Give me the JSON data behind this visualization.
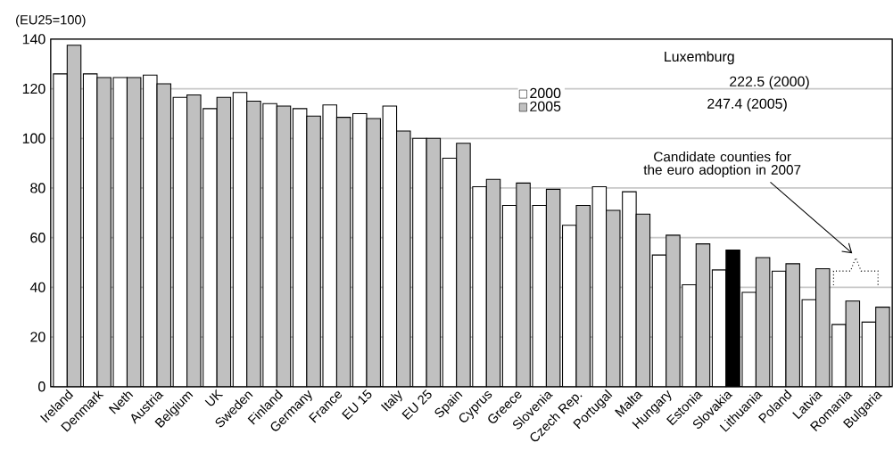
{
  "chart_data": {
    "type": "bar",
    "ylabel": "(EU25=100)",
    "categories": [
      "Ireland",
      "Denmark",
      "Neth",
      "Austria",
      "Belgium",
      "UK",
      "Sweden",
      "Finland",
      "Germany",
      "France",
      "EU 15",
      "Italy",
      "EU 25",
      "Spain",
      "Cyprus",
      "Greece",
      "Slovenia",
      "Czech Rep.",
      "Portugal",
      "Malta",
      "Hungary",
      "Estonia",
      "Slovakia",
      "Lithuania",
      "Poland",
      "Latvia",
      "Romania",
      "Bulgaria"
    ],
    "series": [
      {
        "name": "2000",
        "color": "#ffffff",
        "values": [
          126,
          126,
          124.5,
          125.5,
          116.5,
          112,
          118.5,
          114,
          112,
          113.5,
          110,
          113,
          100,
          92,
          80.5,
          73,
          73,
          65,
          80.5,
          78.5,
          53,
          41,
          47,
          38,
          46.5,
          35,
          25,
          26
        ]
      },
      {
        "name": "2005",
        "color": "#c0c0c0",
        "colors": [
          "#c0c0c0",
          "#c0c0c0",
          "#c0c0c0",
          "#c0c0c0",
          "#c0c0c0",
          "#c0c0c0",
          "#c0c0c0",
          "#c0c0c0",
          "#c0c0c0",
          "#c0c0c0",
          "#c0c0c0",
          "#c0c0c0",
          "#c0c0c0",
          "#c0c0c0",
          "#c0c0c0",
          "#c0c0c0",
          "#c0c0c0",
          "#c0c0c0",
          "#c0c0c0",
          "#c0c0c0",
          "#c0c0c0",
          "#c0c0c0",
          "#000000",
          "#c0c0c0",
          "#c0c0c0",
          "#c0c0c0",
          "#c0c0c0",
          "#c0c0c0"
        ],
        "values": [
          137.5,
          124.5,
          124.5,
          122,
          117.5,
          116.5,
          115,
          113,
          109,
          108.5,
          108,
          103,
          100,
          98,
          83.5,
          82,
          79.5,
          73,
          71,
          69.5,
          61,
          57.5,
          55,
          52,
          49.5,
          47.5,
          34.5,
          32
        ]
      }
    ],
    "ylim": [
      0,
      140
    ],
    "yticks": [
      0,
      20,
      40,
      60,
      80,
      100,
      120,
      140
    ],
    "grid": "y",
    "legend": "top right",
    "annotations": [
      "Luxemburg",
      "222.5 (2000)",
      "247.4 (2005)",
      "Candidate counties for the euro adoption in 2007"
    ]
  }
}
